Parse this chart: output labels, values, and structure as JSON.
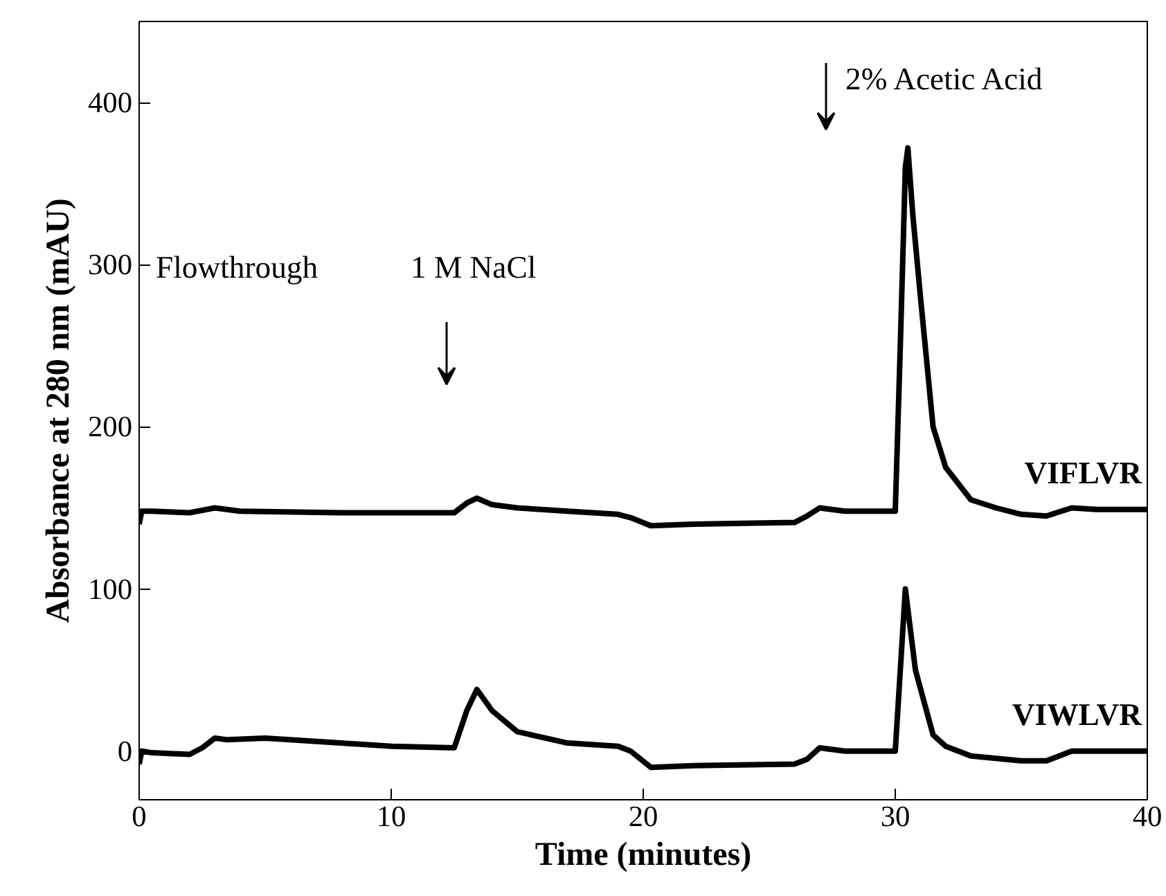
{
  "chart_data": {
    "type": "line",
    "xlabel": "Time (minutes)",
    "ylabel": "Absorbance at 280 nm (mAU)",
    "xlim": [
      0,
      40
    ],
    "ylim": [
      -30,
      450
    ],
    "xticks": [
      0,
      10,
      20,
      30,
      40
    ],
    "yticks": [
      0,
      100,
      200,
      300,
      400
    ],
    "marker": "none",
    "line_style": "solid",
    "series": [
      {
        "name": "VIFLVR",
        "color": "#000000",
        "x": [
          0,
          0.1,
          0.5,
          2,
          3,
          4,
          8,
          12.5,
          13,
          13.4,
          14,
          15,
          17,
          19,
          19.5,
          20.3,
          22,
          26,
          26.5,
          27,
          28,
          30,
          30.2,
          30.4,
          30.5,
          30.7,
          31,
          31.5,
          32,
          33,
          34,
          35,
          36,
          37,
          38,
          40
        ],
        "values": [
          140,
          148,
          148,
          147,
          150,
          148,
          147,
          147,
          153,
          156,
          152,
          150,
          148,
          146,
          144,
          139,
          140,
          141,
          145,
          150,
          148,
          148,
          250,
          360,
          372,
          330,
          280,
          200,
          175,
          155,
          150,
          146,
          145,
          150,
          149,
          149
        ]
      },
      {
        "name": "VIWLVR",
        "color": "#000000",
        "x": [
          0,
          0.1,
          0.5,
          2,
          2.5,
          3,
          3.5,
          5,
          8,
          10,
          12.5,
          13,
          13.4,
          14,
          15,
          17,
          19,
          19.5,
          20.3,
          22,
          26,
          26.5,
          27,
          28,
          30,
          30.2,
          30.4,
          30.6,
          30.8,
          31.5,
          32,
          33,
          35,
          36,
          37,
          40
        ],
        "values": [
          -8,
          0,
          -1,
          -2,
          2,
          8,
          7,
          8,
          5,
          3,
          2,
          25,
          38,
          25,
          12,
          5,
          3,
          0,
          -10,
          -9,
          -8,
          -5,
          2,
          0,
          0,
          50,
          100,
          75,
          50,
          10,
          3,
          -3,
          -6,
          -6,
          0,
          0
        ]
      }
    ],
    "annotations": [
      "Flowthrough",
      "1 M NaCl",
      "2% Acetic Acid"
    ]
  }
}
